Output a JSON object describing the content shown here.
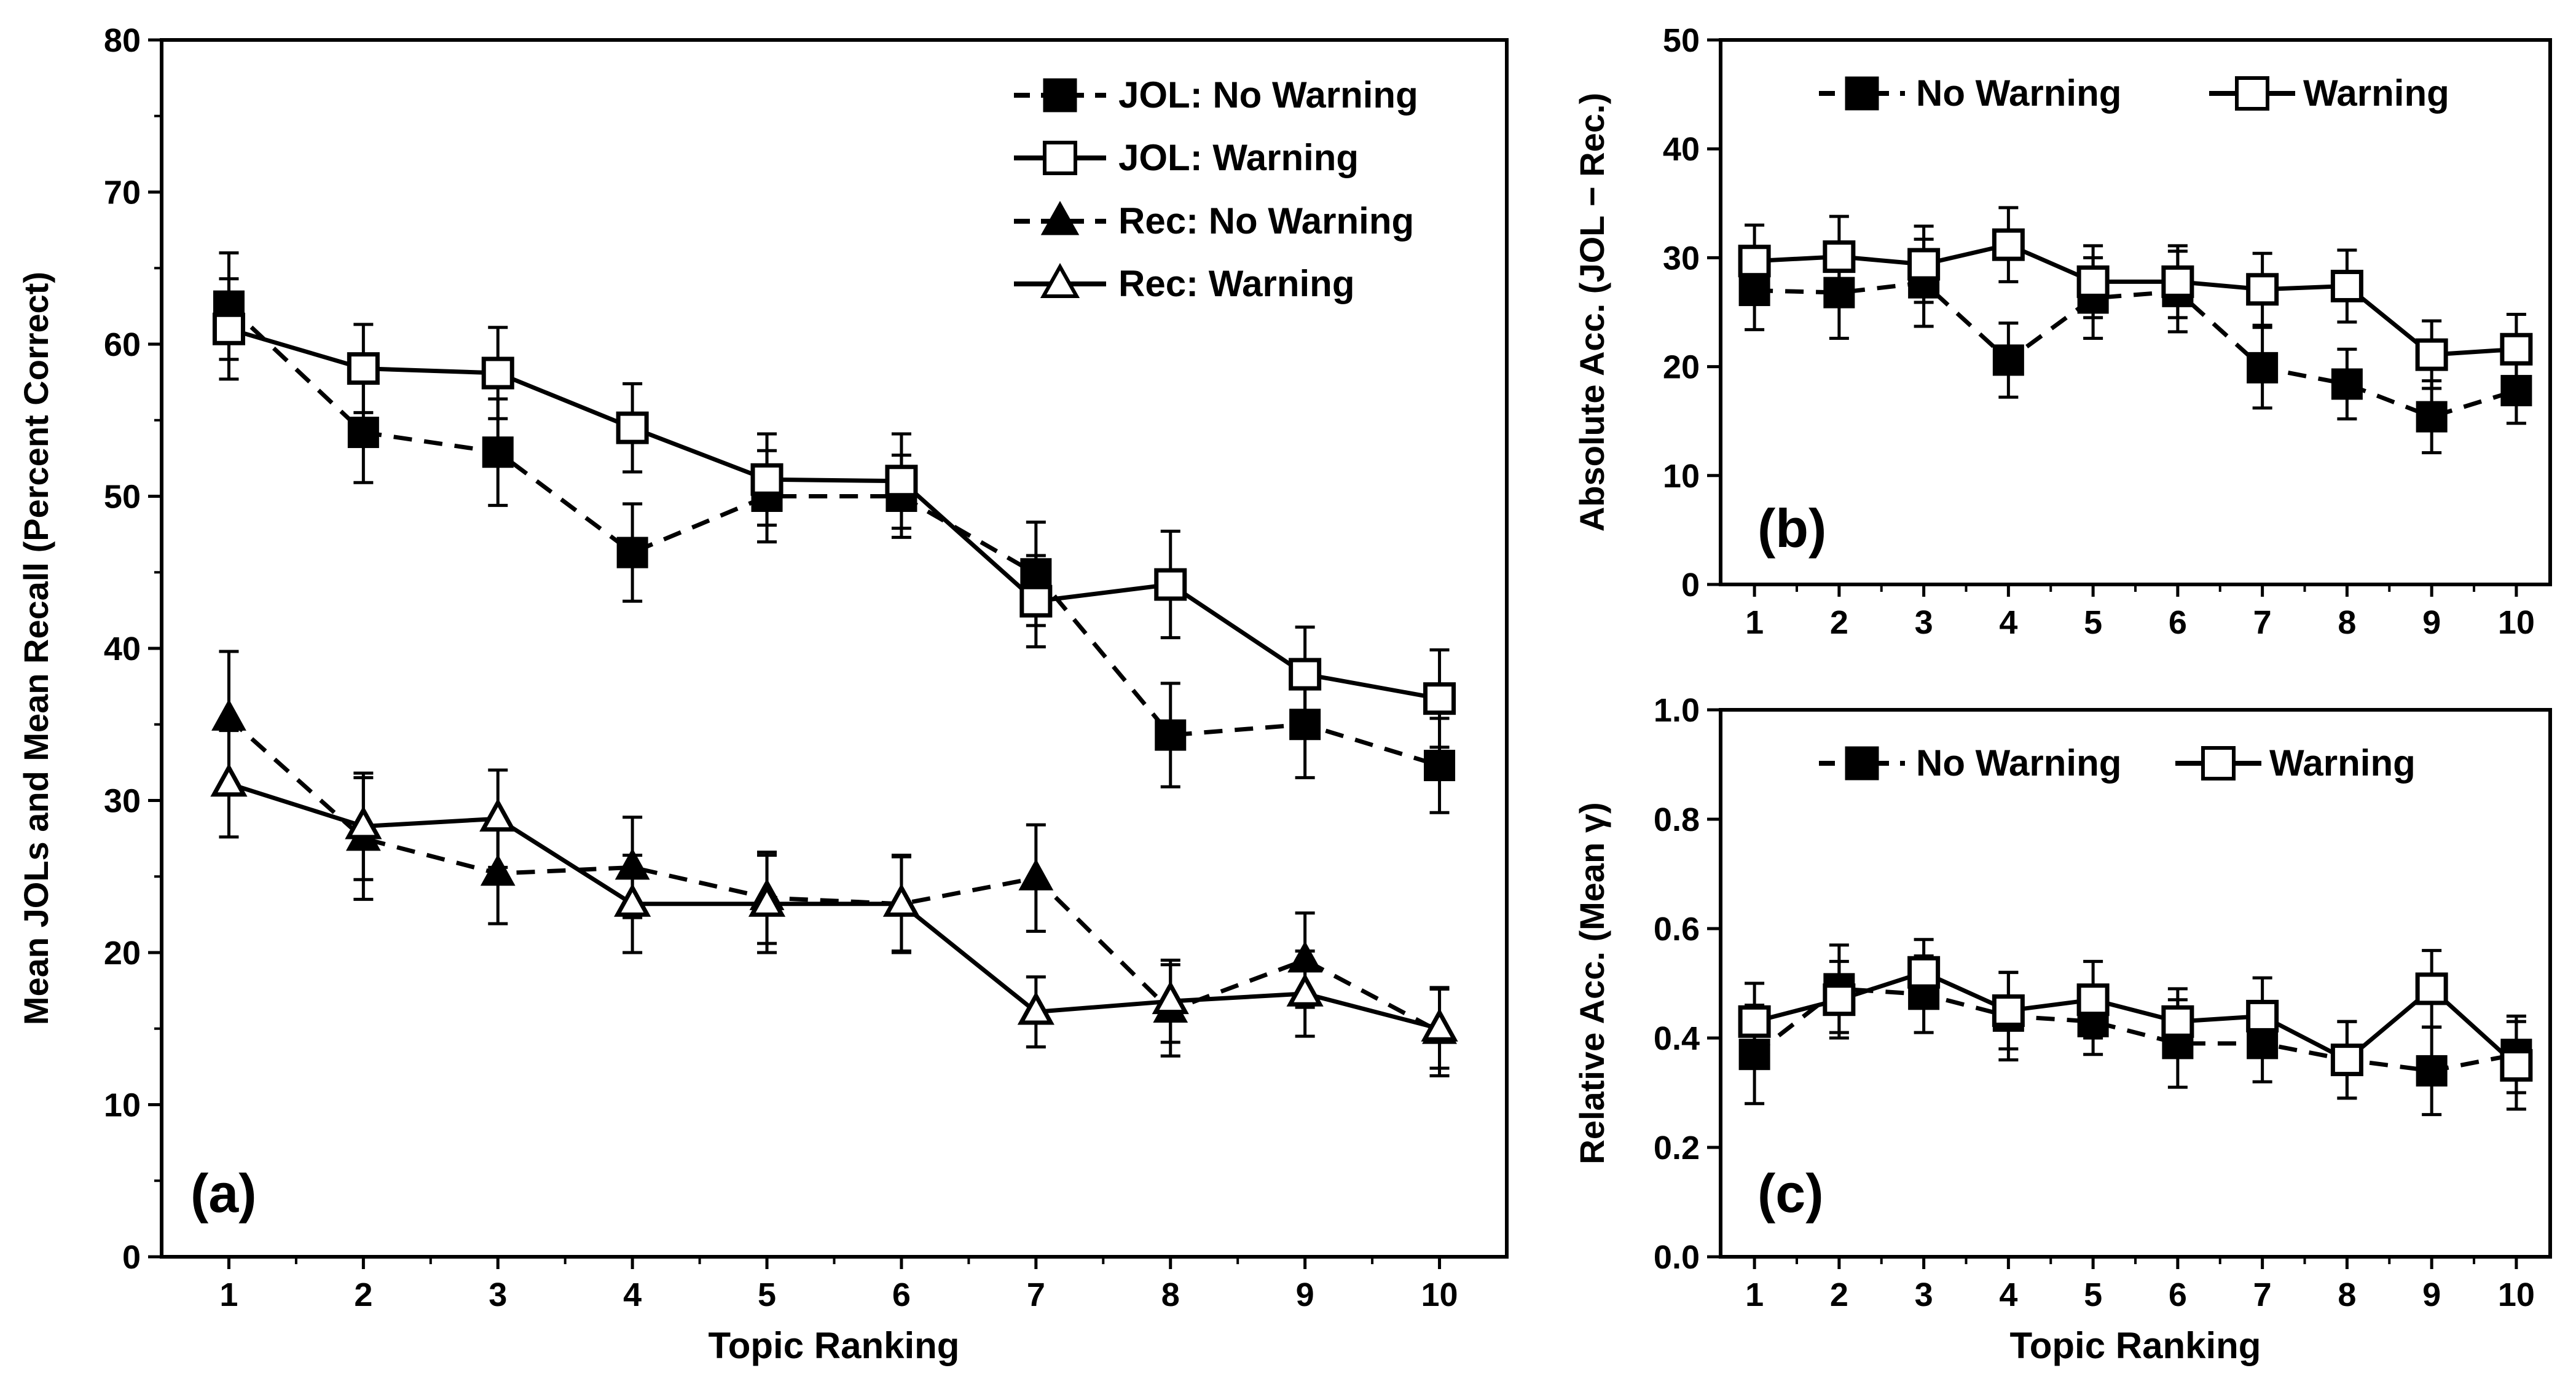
{
  "chart_data": [
    {
      "id": "a",
      "type": "line",
      "panel_label": "(a)",
      "xlabel": "Topic Ranking",
      "ylabel": "Mean JOLs and Mean Recall (Percent Correct)",
      "x": [
        1,
        2,
        3,
        4,
        5,
        6,
        7,
        8,
        9,
        10
      ],
      "ylim": [
        0,
        80
      ],
      "yticks": [
        "0",
        "10",
        "20",
        "30",
        "40",
        "50",
        "60",
        "70",
        "80"
      ],
      "legend_position": "top-right",
      "series": [
        {
          "name": "JOL: No Warning",
          "marker": "square-filled",
          "line": "dashed",
          "values": [
            62.5,
            54.2,
            52.9,
            46.3,
            50.0,
            50.0,
            44.9,
            34.3,
            35.0,
            32.3
          ],
          "errors": [
            3.5,
            3.3,
            3.5,
            3.2,
            3.0,
            2.7,
            3.4,
            3.4,
            3.5,
            3.1
          ]
        },
        {
          "name": "JOL: Warning",
          "marker": "square-open",
          "line": "solid",
          "values": [
            61.0,
            58.4,
            58.1,
            54.5,
            51.1,
            51.0,
            43.1,
            44.2,
            38.3,
            36.7
          ],
          "errors": [
            3.3,
            2.9,
            3.0,
            2.9,
            3.0,
            3.1,
            3.0,
            3.5,
            3.1,
            3.2
          ]
        },
        {
          "name": "Rec: No Warning",
          "marker": "triangle-filled",
          "line": "dashed",
          "values": [
            35.4,
            27.5,
            25.2,
            25.6,
            23.6,
            23.2,
            24.9,
            16.2,
            19.5,
            14.8
          ],
          "errors": [
            4.4,
            4.0,
            3.3,
            3.3,
            3.0,
            3.2,
            3.5,
            3.0,
            3.1,
            2.9
          ]
        },
        {
          "name": "Rec: Warning",
          "marker": "triangle-open",
          "line": "solid",
          "values": [
            31.1,
            28.3,
            28.8,
            23.2,
            23.2,
            23.2,
            16.1,
            16.8,
            17.3,
            15.0
          ],
          "errors": [
            3.5,
            3.5,
            3.2,
            3.2,
            3.2,
            3.1,
            2.3,
            2.7,
            2.8,
            2.6
          ]
        }
      ]
    },
    {
      "id": "b",
      "type": "line",
      "panel_label": "(b)",
      "xlabel": "",
      "ylabel": "Absolute Acc. (JOL − Rec.)",
      "x": [
        1,
        2,
        3,
        4,
        5,
        6,
        7,
        8,
        9,
        10
      ],
      "ylim": [
        0,
        50
      ],
      "yticks": [
        "0",
        "10",
        "20",
        "30",
        "40",
        "50"
      ],
      "legend_position": "top",
      "series": [
        {
          "name": "No Warning",
          "marker": "square-filled",
          "line": "dashed",
          "values": [
            27.0,
            26.8,
            27.7,
            20.6,
            26.3,
            26.9,
            19.9,
            18.4,
            15.4,
            17.8
          ],
          "errors": [
            3.6,
            4.2,
            4.0,
            3.4,
            3.7,
            3.7,
            3.7,
            3.2,
            3.3,
            3.0
          ]
        },
        {
          "name": "Warning",
          "marker": "square-open",
          "line": "solid",
          "values": [
            29.7,
            30.1,
            29.4,
            31.2,
            27.8,
            27.8,
            27.1,
            27.4,
            21.1,
            21.6
          ],
          "errors": [
            3.3,
            3.7,
            3.5,
            3.4,
            3.3,
            3.3,
            3.3,
            3.3,
            3.1,
            3.2
          ]
        }
      ]
    },
    {
      "id": "c",
      "type": "line",
      "panel_label": "(c)",
      "xlabel": "Topic Ranking",
      "ylabel": "Relative Acc. (Mean γ)",
      "x": [
        1,
        2,
        3,
        4,
        5,
        6,
        7,
        8,
        9,
        10
      ],
      "ylim": [
        0,
        1.0
      ],
      "yticks": [
        "0.0",
        "0.2",
        "0.4",
        "0.6",
        "0.8",
        "1.0"
      ],
      "legend_position": "top",
      "series": [
        {
          "name": "No Warning",
          "marker": "square-filled",
          "line": "dashed",
          "values": [
            0.37,
            0.49,
            0.48,
            0.44,
            0.43,
            0.39,
            0.39,
            0.36,
            0.34,
            0.37
          ],
          "errors": [
            0.09,
            0.08,
            0.07,
            0.08,
            0.06,
            0.08,
            0.07,
            0.07,
            0.08,
            0.07
          ]
        },
        {
          "name": "Warning",
          "marker": "square-open",
          "line": "solid",
          "values": [
            0.43,
            0.47,
            0.52,
            0.45,
            0.47,
            0.43,
            0.44,
            0.36,
            0.49,
            0.35
          ],
          "errors": [
            0.07,
            0.07,
            0.06,
            0.07,
            0.07,
            0.06,
            0.07,
            0.07,
            0.07,
            0.08
          ]
        }
      ]
    }
  ]
}
